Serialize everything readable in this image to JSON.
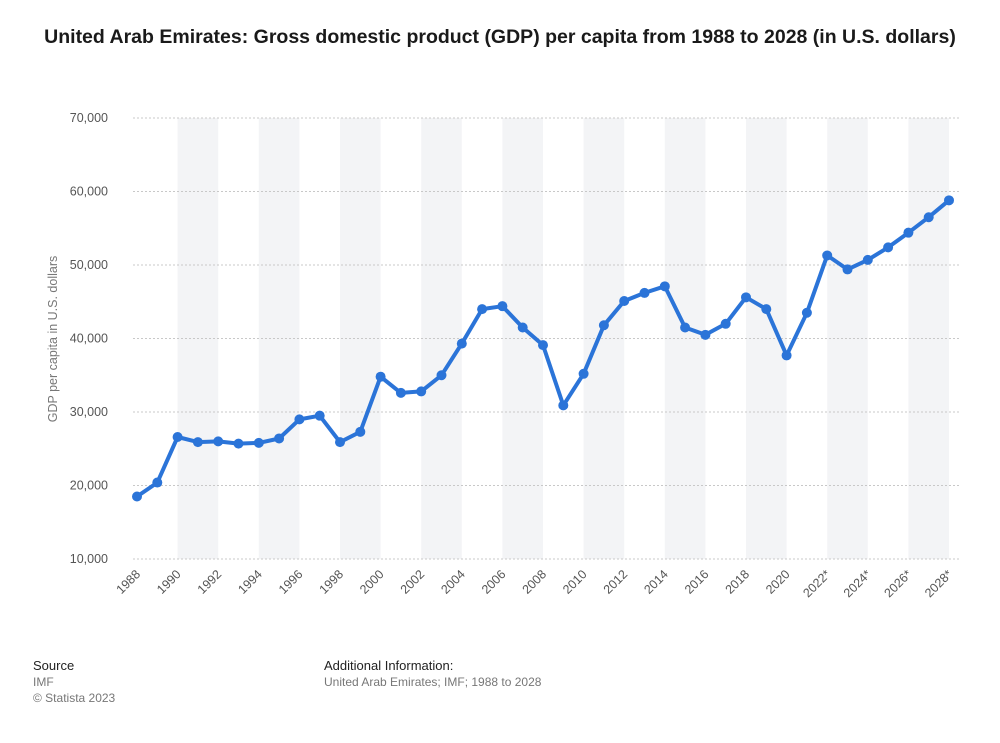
{
  "title": "United Arab Emirates: Gross domestic product (GDP) per capita from 1988 to 2028 (in U.S. dollars)",
  "footer": {
    "source_heading": "Source",
    "source_name": "IMF",
    "copyright": "© Statista 2023",
    "info_heading": "Additional Information:",
    "info_text": "United Arab Emirates; IMF; 1988 to 2028"
  },
  "colors": {
    "line": "#2b74d8",
    "band": "#f3f4f6",
    "grid": "#c8c8c8"
  },
  "chart_data": {
    "type": "line",
    "ylabel": "GDP per capita in U.S. dollars",
    "xlabel": "",
    "ylim": [
      10000,
      70000
    ],
    "yticks": [
      10000,
      20000,
      30000,
      40000,
      50000,
      60000,
      70000
    ],
    "ytick_labels": [
      "10,000",
      "20,000",
      "30,000",
      "40,000",
      "50,000",
      "60,000",
      "70,000"
    ],
    "grid": true,
    "legend": false,
    "x": [
      "1988",
      "1989",
      "1990",
      "1991",
      "1992",
      "1993",
      "1994",
      "1995",
      "1996",
      "1997",
      "1998",
      "1999",
      "2000",
      "2001",
      "2002",
      "2003",
      "2004",
      "2005",
      "2006",
      "2007",
      "2008",
      "2009",
      "2010",
      "2011",
      "2012",
      "2013",
      "2014",
      "2015",
      "2016",
      "2017",
      "2018",
      "2019",
      "2020",
      "2021",
      "2022*",
      "2023*",
      "2024*",
      "2025*",
      "2026*",
      "2027*",
      "2028*"
    ],
    "xtick_labels": [
      "1988",
      "",
      "1990",
      "",
      "1992",
      "",
      "1994",
      "",
      "1996",
      "",
      "1998",
      "",
      "2000",
      "",
      "2002",
      "",
      "2004",
      "",
      "2006",
      "",
      "2008",
      "",
      "2010",
      "",
      "2012",
      "",
      "2014",
      "",
      "2016",
      "",
      "2018",
      "",
      "2020",
      "",
      "2022*",
      "",
      "2024*",
      "",
      "2026*",
      "",
      "2028*"
    ],
    "series": [
      {
        "values": [
          18500,
          20400,
          26600,
          25900,
          26000,
          25700,
          25800,
          26400,
          29000,
          29500,
          25900,
          27300,
          34800,
          32600,
          32800,
          35000,
          39300,
          44000,
          44400,
          41500,
          39100,
          30900,
          35200,
          41800,
          45100,
          46200,
          47100,
          41500,
          40500,
          42000,
          45600,
          44000,
          37700,
          43500,
          51300,
          49400,
          50700,
          52400,
          54400,
          56500,
          58800
        ]
      }
    ]
  }
}
